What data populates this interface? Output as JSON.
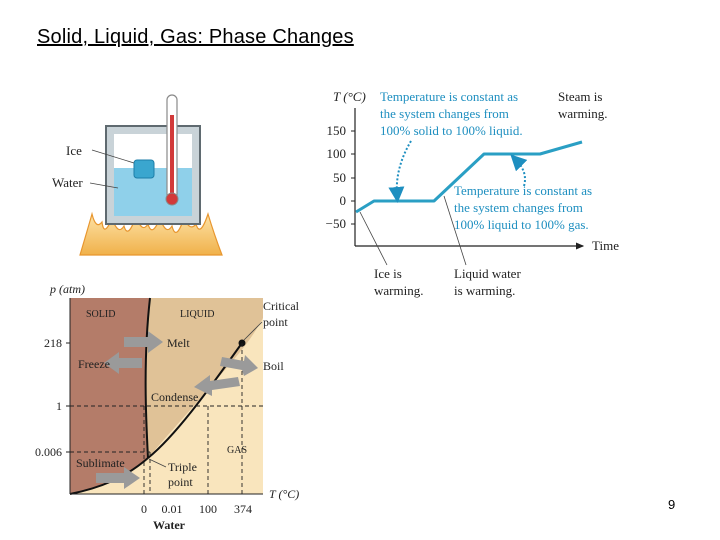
{
  "slide": {
    "title": "Solid, Liquid, Gas: Phase Changes",
    "page_number": "9"
  },
  "beaker": {
    "ice_label": "Ice",
    "water_label": "Water"
  },
  "heating_curve": {
    "y_axis_label": "T (°C)",
    "x_axis_label": "Time",
    "y_ticks": [
      "150",
      "100",
      "50",
      "0",
      "−50"
    ],
    "note_melting": [
      "Temperature is constant as",
      "the system changes from",
      "100% solid to 100% liquid."
    ],
    "note_boiling": [
      "Temperature is constant as",
      "the system changes from",
      "100% liquid to 100% gas."
    ],
    "note_steam": [
      "Steam is",
      "warming."
    ],
    "note_ice": [
      "Ice is",
      "warming."
    ],
    "note_liquid": [
      "Liquid water",
      "is warming."
    ]
  },
  "phase_diagram": {
    "y_axis_label": "p (atm)",
    "x_axis_label": "T (°C)",
    "x_axis_title": "Water",
    "y_ticks": [
      "218",
      "1",
      "0.006"
    ],
    "x_ticks": [
      "0",
      "0.01",
      "100",
      "374"
    ],
    "regions": {
      "solid": "SOLID",
      "liquid": "LIQUID",
      "gas": "GAS"
    },
    "arrows": {
      "melt": "Melt",
      "freeze": "Freeze",
      "boil": "Boil",
      "condense": "Condense",
      "sublimate": "Sublimate"
    },
    "critical_point": [
      "Critical",
      "point"
    ],
    "triple_point": [
      "Triple",
      "point"
    ]
  },
  "colors": {
    "curve_blue": "#2a9fc4",
    "note_blue": "#1e8fc0",
    "water_blue": "#8fd0ea",
    "solid_brown": "#b47c69",
    "liquid_tan": "#e0c297",
    "gas_cream": "#f9e5bd",
    "arrow_gray": "#9a9a9a"
  }
}
